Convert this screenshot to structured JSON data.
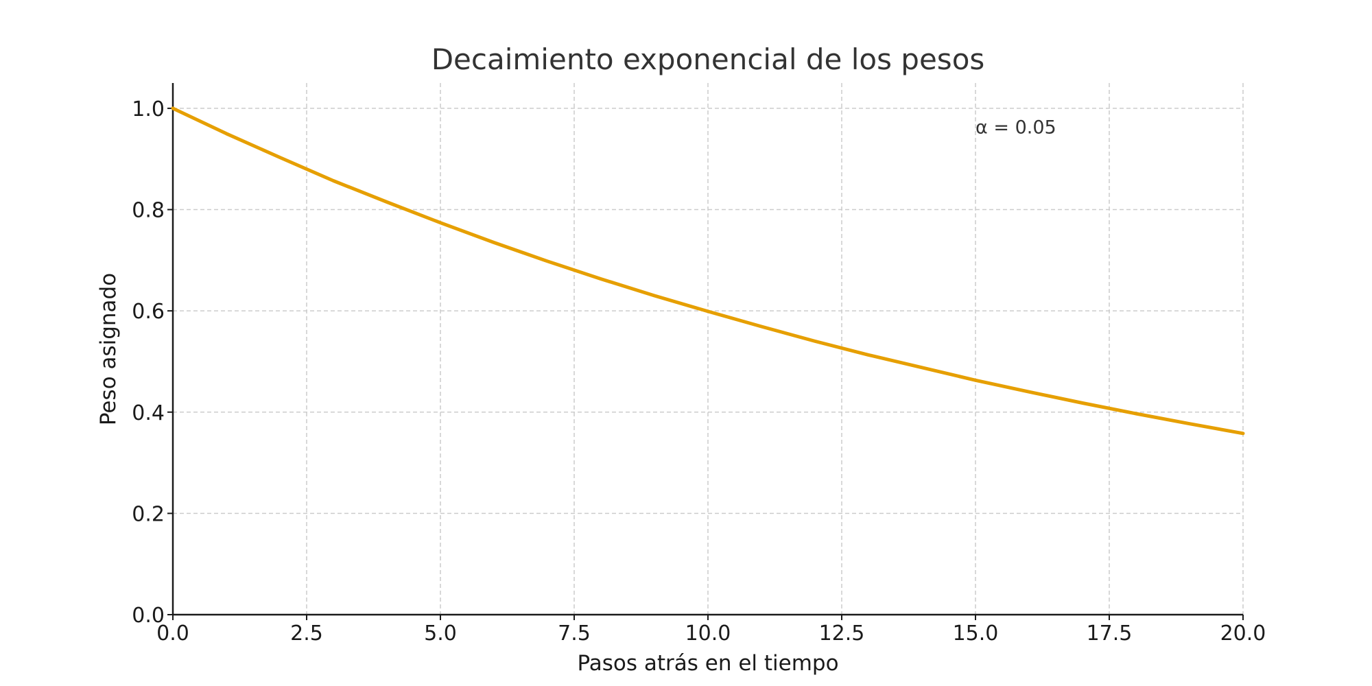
{
  "chart_data": {
    "type": "line",
    "title": "Decaimiento exponencial de los pesos",
    "xlabel": "Pasos atrás en el tiempo",
    "ylabel": "Peso asignado",
    "xlim": [
      0,
      20
    ],
    "ylim": [
      0,
      1.05
    ],
    "x_ticks": [
      0,
      2.5,
      5,
      7.5,
      10,
      12.5,
      15,
      17.5,
      20
    ],
    "x_tick_labels": [
      "0.0",
      "2.5",
      "5.0",
      "7.5",
      "10.0",
      "12.5",
      "15.0",
      "17.5",
      "20.0"
    ],
    "y_ticks": [
      0,
      0.2,
      0.4,
      0.6,
      0.8,
      1.0
    ],
    "y_tick_labels": [
      "0.0",
      "0.2",
      "0.4",
      "0.6",
      "0.8",
      "1.0"
    ],
    "grid": true,
    "series": [
      {
        "color": "#e69f00",
        "x": [
          0,
          1,
          2,
          3,
          4,
          5,
          6,
          7,
          8,
          9,
          10,
          11,
          12,
          13,
          14,
          15,
          16,
          17,
          18,
          19,
          20
        ],
        "y": [
          1.0,
          0.95,
          0.903,
          0.857,
          0.815,
          0.774,
          0.735,
          0.698,
          0.663,
          0.63,
          0.599,
          0.569,
          0.54,
          0.513,
          0.488,
          0.463,
          0.44,
          0.418,
          0.397,
          0.377,
          0.358
        ]
      }
    ],
    "annotations": [
      {
        "text": "α = 0.05",
        "x": 15,
        "y": 0.96
      }
    ]
  }
}
